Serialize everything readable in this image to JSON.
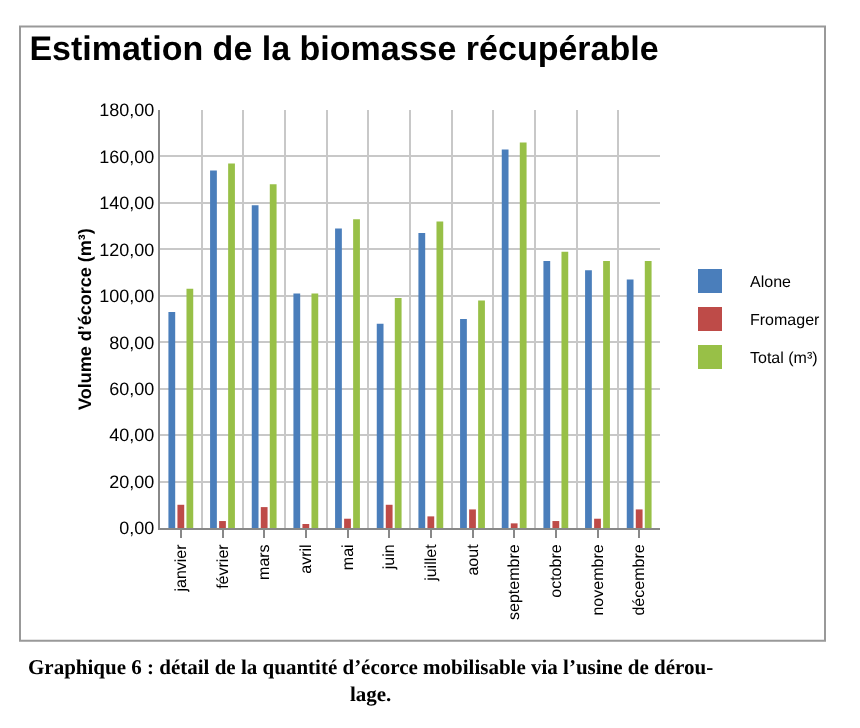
{
  "chart_data": {
    "type": "bar",
    "title": "Estimation de la biomasse récupérable",
    "ylabel": "Volume d’écorce (m³)",
    "categories": [
      "janvier",
      "février",
      "mars",
      "avril",
      "mai",
      "juin",
      "juillet",
      "aout",
      "septembre",
      "octobre",
      "novembre",
      "décembre"
    ],
    "series": [
      {
        "name": "Alone",
        "color": "#4a7ebb",
        "values": [
          93,
          154,
          139,
          101,
          129,
          88,
          127,
          90,
          163,
          115,
          111,
          107
        ]
      },
      {
        "name": "Fromager",
        "color": "#be4b48",
        "values": [
          10,
          3,
          9,
          1,
          4,
          10,
          5,
          8,
          2,
          3,
          4,
          8
        ]
      },
      {
        "name": "Total (m³)",
        "color": "#98c047",
        "values": [
          103,
          157,
          148,
          101,
          133,
          99,
          132,
          98,
          166,
          119,
          115,
          115
        ]
      }
    ],
    "ylim": [
      0,
      180
    ],
    "yticks": [
      {
        "value": 0,
        "label": "0,00"
      },
      {
        "value": 20,
        "label": "20,00"
      },
      {
        "value": 40,
        "label": "40,00"
      },
      {
        "value": 60,
        "label": "60,00"
      },
      {
        "value": 80,
        "label": "80,00"
      },
      {
        "value": 100,
        "label": "100,00"
      },
      {
        "value": 120,
        "label": "120,00"
      },
      {
        "value": 140,
        "label": "140,00"
      },
      {
        "value": 160,
        "label": "160,00"
      },
      {
        "value": 180,
        "label": "180,00"
      }
    ],
    "grid": true,
    "legend": "right",
    "annotations": [
      "Graphique 6 : détail de la quantité d’écorce mobilisable via l’usine de dérou-\nlage."
    ]
  }
}
